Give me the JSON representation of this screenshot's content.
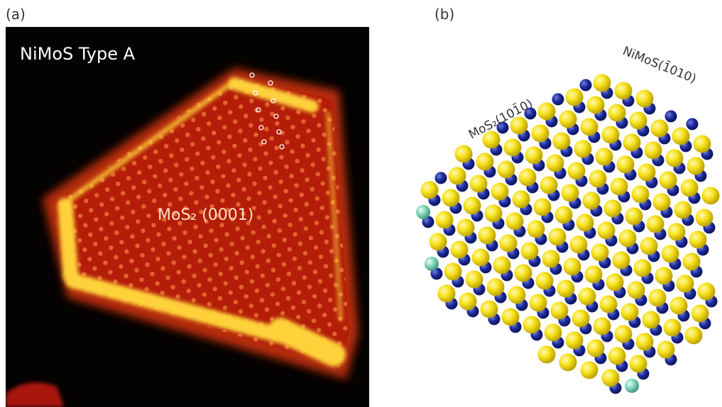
{
  "panels": [
    {
      "label": "(a)",
      "title": "NiMoS Type A",
      "annotation": "MoS₂ (0001)"
    },
    {
      "label": "(b)",
      "edge_labels": [
        "MoS₂(101̄0)",
        "NiMoS(1̄010)"
      ]
    }
  ]
}
